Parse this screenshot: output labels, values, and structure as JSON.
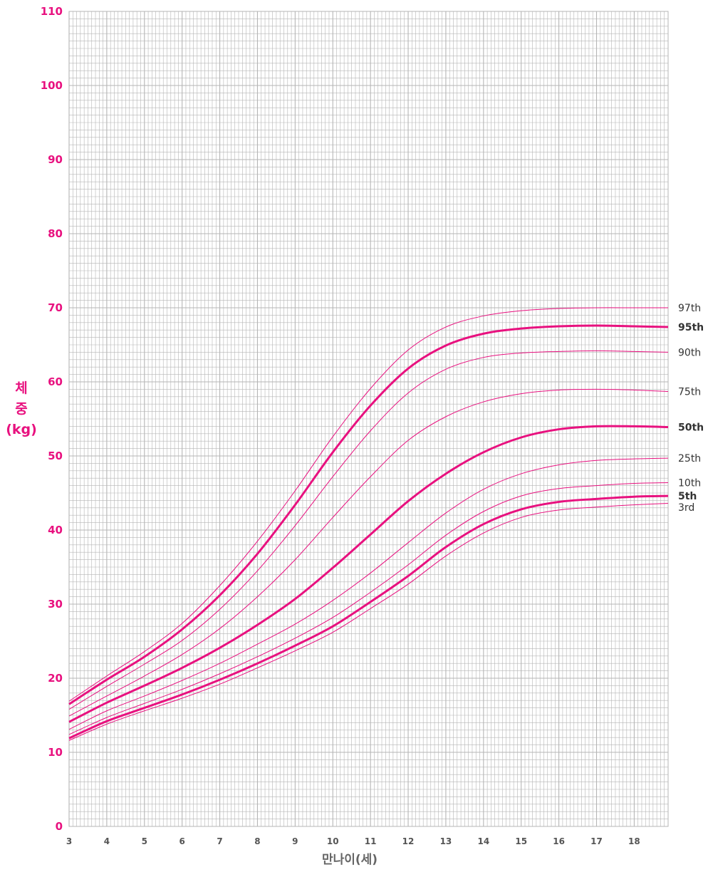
{
  "chart_data": {
    "type": "line",
    "xlabel": "만나이(세)",
    "ylabel_lines": [
      "체",
      "중",
      "(kg)"
    ],
    "xlim": [
      3,
      18.9
    ],
    "ylim": [
      0,
      110
    ],
    "x_ticks": [
      3,
      4,
      5,
      6,
      7,
      8,
      9,
      10,
      11,
      12,
      13,
      14,
      15,
      16,
      17,
      18
    ],
    "y_ticks": [
      0,
      10,
      20,
      30,
      40,
      50,
      60,
      70,
      80,
      90,
      100,
      110
    ],
    "grid": true,
    "x": [
      3,
      4,
      5,
      6,
      7,
      8,
      9,
      10,
      11,
      12,
      13,
      14,
      15,
      16,
      17,
      18,
      18.9
    ],
    "series": [
      {
        "name": "97th",
        "bold": false,
        "values": [
          16.9,
          20.3,
          23.6,
          27.4,
          32.5,
          38.5,
          45.3,
          52.6,
          59.1,
          64.3,
          67.4,
          68.9,
          69.6,
          69.9,
          70.0,
          70.0,
          70.0
        ]
      },
      {
        "name": "95th",
        "bold": true,
        "values": [
          16.5,
          19.8,
          22.9,
          26.6,
          31.2,
          36.8,
          43.4,
          50.5,
          56.8,
          61.8,
          64.9,
          66.5,
          67.2,
          67.5,
          67.6,
          67.5,
          67.4
        ]
      },
      {
        "name": "90th",
        "bold": false,
        "values": [
          15.8,
          18.9,
          21.9,
          25.1,
          29.3,
          34.5,
          40.6,
          47.2,
          53.4,
          58.5,
          61.7,
          63.3,
          63.9,
          64.1,
          64.2,
          64.1,
          64.0
        ]
      },
      {
        "name": "75th",
        "bold": false,
        "values": [
          14.9,
          17.6,
          20.3,
          23.2,
          26.7,
          31.0,
          36.0,
          41.7,
          47.2,
          52.1,
          55.3,
          57.3,
          58.4,
          58.9,
          59.0,
          58.9,
          58.7
        ]
      },
      {
        "name": "50th",
        "bold": true,
        "values": [
          14.1,
          16.7,
          19.0,
          21.4,
          24.1,
          27.2,
          30.7,
          34.9,
          39.4,
          43.9,
          47.6,
          50.5,
          52.5,
          53.6,
          54.0,
          54.0,
          53.9
        ]
      },
      {
        "name": "25th",
        "bold": false,
        "values": [
          13.1,
          15.6,
          17.6,
          19.7,
          22.0,
          24.6,
          27.3,
          30.5,
          34.2,
          38.3,
          42.3,
          45.5,
          47.6,
          48.8,
          49.4,
          49.6,
          49.7
        ]
      },
      {
        "name": "10th",
        "bold": false,
        "values": [
          12.4,
          14.7,
          16.6,
          18.5,
          20.6,
          22.9,
          25.4,
          28.2,
          31.6,
          35.3,
          39.3,
          42.5,
          44.6,
          45.6,
          46.0,
          46.3,
          46.4
        ]
      },
      {
        "name": "5th",
        "bold": true,
        "values": [
          11.9,
          14.2,
          16.0,
          17.8,
          19.8,
          22.0,
          24.4,
          27.0,
          30.3,
          33.8,
          37.7,
          40.8,
          42.8,
          43.8,
          44.2,
          44.5,
          44.6
        ]
      },
      {
        "name": "3rd",
        "bold": false,
        "values": [
          11.6,
          13.8,
          15.6,
          17.3,
          19.2,
          21.4,
          23.7,
          26.2,
          29.4,
          32.7,
          36.5,
          39.6,
          41.7,
          42.7,
          43.1,
          43.4,
          43.6
        ]
      }
    ]
  },
  "colors": {
    "curve": "#e8117f",
    "grid": "#b5b5b5",
    "axis_text": "#e8117f",
    "x_text": "#555555",
    "label_text": "#333333"
  }
}
